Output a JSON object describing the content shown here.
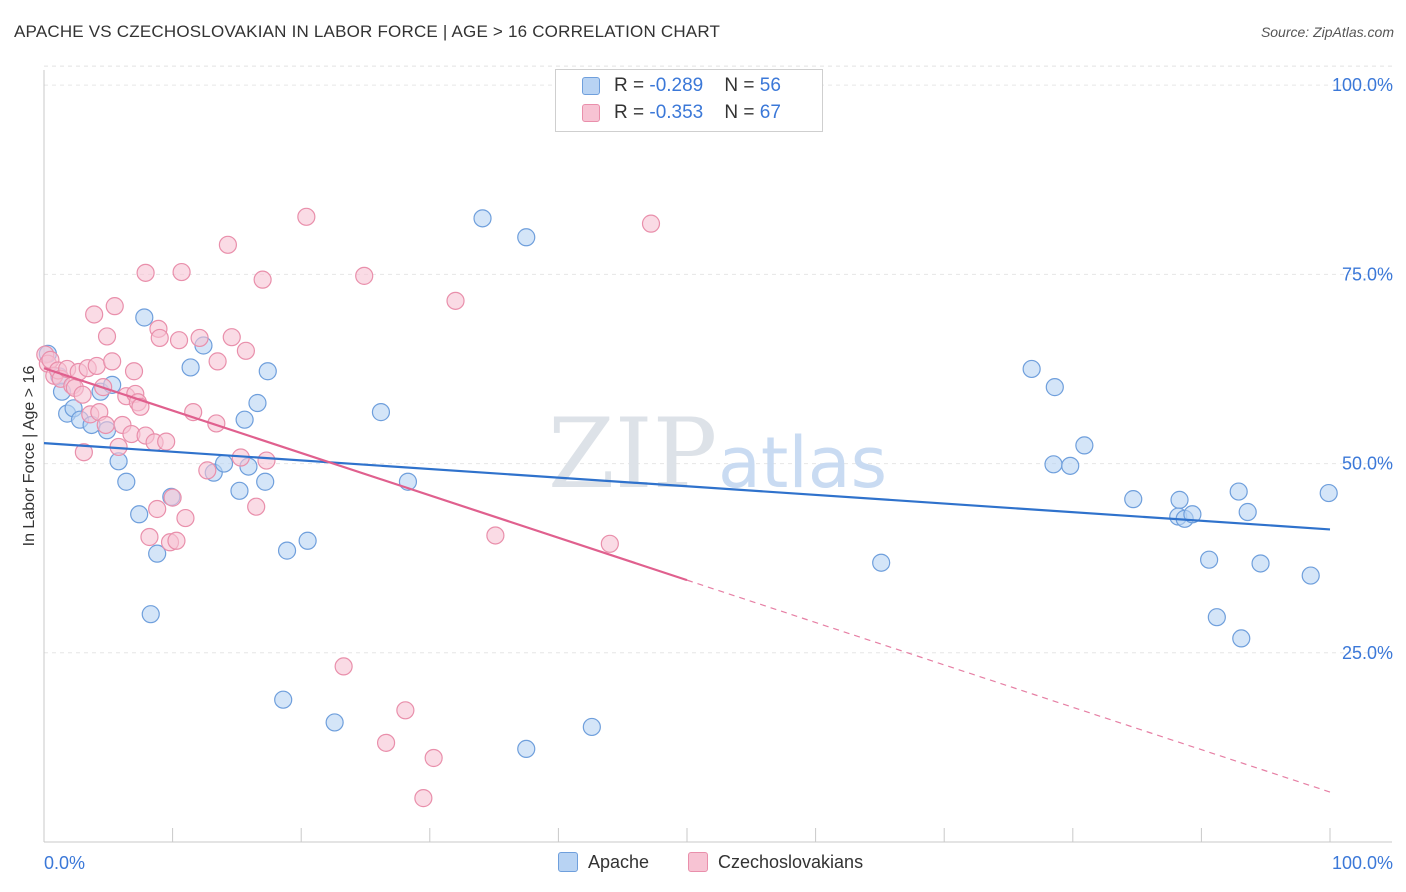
{
  "title": "APACHE VS CZECHOSLOVAKIAN IN LABOR FORCE | AGE > 16 CORRELATION CHART",
  "source": "Source: ZipAtlas.com",
  "watermark": {
    "zip": "ZIP",
    "atlas": "atlas"
  },
  "colors": {
    "apache_fill": "#b8d3f3",
    "apache_stroke": "#6f9fdc",
    "apache_line": "#2f72cc",
    "czech_fill": "#f7c3d3",
    "czech_stroke": "#e98fab",
    "czech_line": "#e0608e",
    "tick_text": "#3b78d8"
  },
  "legend": {
    "rows": [
      {
        "r_label": "R = ",
        "r_value": "-0.289",
        "n_label": "N = ",
        "n_value": "56"
      },
      {
        "r_label": "R = ",
        "r_value": "-0.353",
        "n_label": "N = ",
        "n_value": "67"
      }
    ]
  },
  "bottom_legend": {
    "apache": "Apache",
    "czech": "Czechoslovakians"
  },
  "chart_data": {
    "type": "scatter",
    "title": "APACHE VS CZECHOSLOVAKIAN IN LABOR FORCE | AGE > 16 CORRELATION CHART",
    "xlabel": "",
    "ylabel": "In Labor Force | Age > 16",
    "xlim": [
      0,
      100
    ],
    "ylim": [
      0,
      102
    ],
    "x_tick_labels": [
      "0.0%",
      "100.0%"
    ],
    "y_ticks": [
      25,
      50,
      75,
      100
    ],
    "y_tick_labels": [
      "25.0%",
      "50.0%",
      "75.0%",
      "100.0%"
    ],
    "grid": true,
    "series": [
      {
        "name": "Apache",
        "r": -0.289,
        "n": 56,
        "trend": {
          "x": [
            0,
            100
          ],
          "y": [
            52.7,
            41.3
          ]
        },
        "points": [
          [
            0.3,
            64.5
          ],
          [
            1.2,
            61.5
          ],
          [
            1.4,
            59.5
          ],
          [
            1.8,
            56.6
          ],
          [
            2.3,
            57.3
          ],
          [
            2.8,
            55.8
          ],
          [
            3.7,
            55.1
          ],
          [
            4.4,
            59.5
          ],
          [
            4.9,
            54.4
          ],
          [
            5.3,
            60.4
          ],
          [
            5.8,
            50.3
          ],
          [
            6.4,
            47.6
          ],
          [
            7.4,
            43.3
          ],
          [
            7.8,
            69.3
          ],
          [
            8.3,
            30.1
          ],
          [
            8.8,
            38.1
          ],
          [
            9.9,
            45.6
          ],
          [
            11.4,
            62.7
          ],
          [
            12.4,
            65.6
          ],
          [
            13.2,
            48.8
          ],
          [
            14.0,
            50.0
          ],
          [
            15.2,
            46.4
          ],
          [
            15.6,
            55.8
          ],
          [
            15.9,
            49.6
          ],
          [
            16.6,
            58.0
          ],
          [
            17.2,
            47.6
          ],
          [
            17.4,
            62.2
          ],
          [
            18.6,
            18.8
          ],
          [
            18.9,
            38.5
          ],
          [
            20.5,
            39.8
          ],
          [
            22.6,
            15.8
          ],
          [
            26.2,
            56.8
          ],
          [
            28.3,
            47.6
          ],
          [
            34.1,
            82.4
          ],
          [
            37.5,
            79.9
          ],
          [
            37.5,
            12.3
          ],
          [
            42.6,
            15.2
          ],
          [
            65.1,
            36.9
          ],
          [
            76.8,
            62.5
          ],
          [
            78.6,
            60.1
          ],
          [
            78.5,
            49.9
          ],
          [
            79.8,
            49.7
          ],
          [
            80.9,
            52.4
          ],
          [
            84.7,
            45.3
          ],
          [
            88.3,
            45.2
          ],
          [
            88.2,
            43.0
          ],
          [
            88.7,
            42.7
          ],
          [
            89.3,
            43.3
          ],
          [
            90.6,
            37.3
          ],
          [
            91.2,
            29.7
          ],
          [
            92.9,
            46.3
          ],
          [
            93.1,
            26.9
          ],
          [
            93.6,
            43.6
          ],
          [
            94.6,
            36.8
          ],
          [
            98.5,
            35.2
          ],
          [
            99.9,
            46.1
          ]
        ]
      },
      {
        "name": "Czechoslovakians",
        "r": -0.353,
        "n": 67,
        "trend": {
          "x": [
            0,
            50
          ],
          "y": [
            62.6,
            34.6
          ]
        },
        "trend_dashed": {
          "x": [
            50,
            100
          ],
          "y": [
            34.6,
            6.6
          ]
        },
        "points": [
          [
            0.1,
            64.4
          ],
          [
            0.3,
            63.2
          ],
          [
            0.5,
            63.7
          ],
          [
            0.8,
            61.6
          ],
          [
            1.1,
            62.3
          ],
          [
            1.3,
            61.2
          ],
          [
            1.8,
            62.5
          ],
          [
            2.2,
            60.3
          ],
          [
            2.4,
            60.0
          ],
          [
            2.7,
            62.1
          ],
          [
            3.0,
            59.1
          ],
          [
            3.1,
            51.5
          ],
          [
            3.4,
            62.6
          ],
          [
            3.6,
            56.5
          ],
          [
            3.9,
            69.7
          ],
          [
            4.1,
            62.9
          ],
          [
            4.3,
            56.8
          ],
          [
            4.6,
            60.1
          ],
          [
            4.8,
            55.1
          ],
          [
            4.9,
            66.8
          ],
          [
            5.3,
            63.5
          ],
          [
            5.5,
            70.8
          ],
          [
            5.8,
            52.2
          ],
          [
            6.1,
            55.1
          ],
          [
            6.4,
            58.9
          ],
          [
            6.8,
            53.9
          ],
          [
            7.0,
            62.2
          ],
          [
            7.1,
            59.2
          ],
          [
            7.3,
            58.1
          ],
          [
            7.5,
            57.5
          ],
          [
            7.9,
            53.7
          ],
          [
            7.9,
            75.2
          ],
          [
            8.2,
            40.3
          ],
          [
            8.6,
            52.8
          ],
          [
            8.8,
            44.0
          ],
          [
            8.9,
            67.8
          ],
          [
            9.0,
            66.6
          ],
          [
            9.5,
            52.9
          ],
          [
            9.8,
            39.6
          ],
          [
            10.0,
            45.5
          ],
          [
            10.3,
            39.8
          ],
          [
            10.5,
            66.3
          ],
          [
            10.7,
            75.3
          ],
          [
            11.0,
            42.8
          ],
          [
            11.6,
            56.8
          ],
          [
            12.1,
            66.6
          ],
          [
            12.7,
            49.1
          ],
          [
            13.4,
            55.3
          ],
          [
            13.5,
            63.5
          ],
          [
            14.3,
            78.9
          ],
          [
            14.6,
            66.7
          ],
          [
            15.3,
            50.8
          ],
          [
            15.7,
            64.9
          ],
          [
            16.5,
            44.3
          ],
          [
            17.0,
            74.3
          ],
          [
            17.3,
            50.4
          ],
          [
            20.4,
            82.6
          ],
          [
            23.3,
            23.2
          ],
          [
            24.9,
            74.8
          ],
          [
            26.6,
            13.1
          ],
          [
            28.1,
            17.4
          ],
          [
            29.5,
            5.8
          ],
          [
            30.3,
            11.1
          ],
          [
            32.0,
            71.5
          ],
          [
            35.1,
            40.5
          ],
          [
            44.0,
            39.4
          ],
          [
            47.2,
            81.7
          ]
        ]
      }
    ]
  }
}
